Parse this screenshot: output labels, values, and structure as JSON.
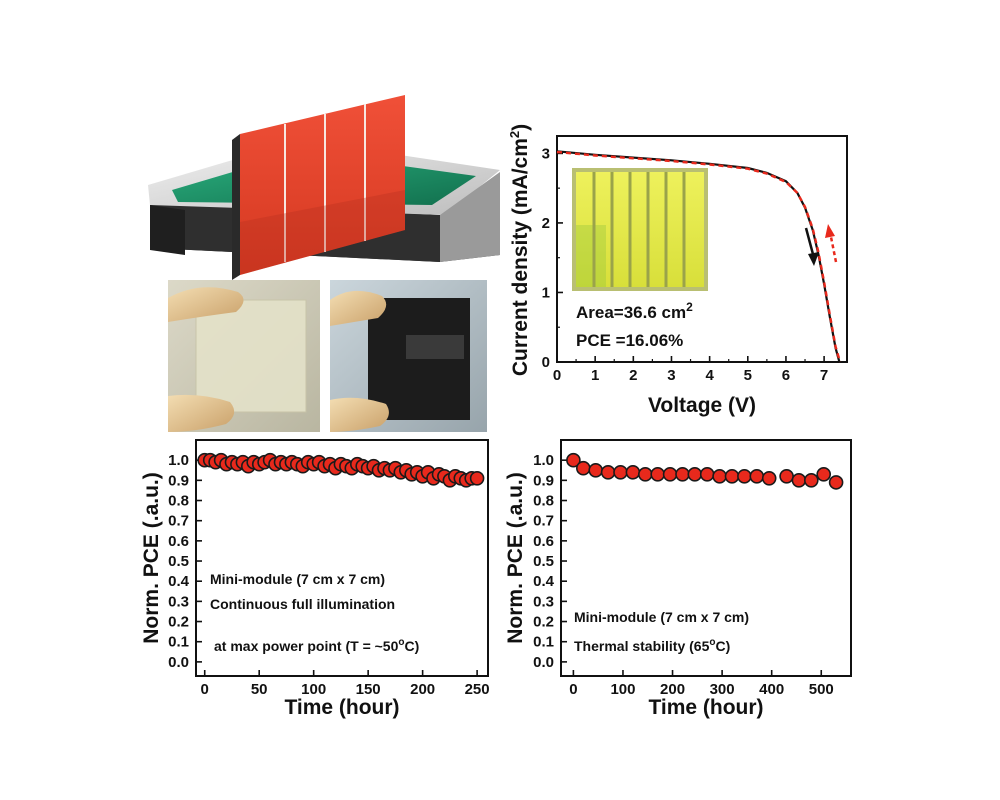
{
  "colors": {
    "accent_red": "#e8291c",
    "dark_red": "#8b0000",
    "module_red": "#e8432e",
    "tray_green": "#1f9a6f",
    "cell_yellow": "#e7ee4a"
  },
  "illustrations": {
    "dipping_module": "red-module-dipping-tray",
    "photo_left": "hand-holding-transparent-film",
    "photo_right": "hand-holding-dark-module"
  },
  "chart_data": [
    {
      "id": "jv",
      "type": "line",
      "xlabel": "Voltage (V)",
      "ylabel_main": "Current density (mA/cm",
      "ylabel_sup": "2",
      "ylabel_tail": ")",
      "xlim": [
        0,
        7.6
      ],
      "ylim": [
        0,
        3.25
      ],
      "xticks": [
        0,
        1,
        2,
        3,
        4,
        5,
        6,
        7
      ],
      "yticks": [
        0,
        1,
        2,
        3
      ],
      "series": [
        {
          "name": "forward",
          "x": [
            0,
            1,
            2,
            3,
            4,
            5,
            5.5,
            6,
            6.3,
            6.5,
            6.7,
            6.85,
            7.0,
            7.15,
            7.3,
            7.4
          ],
          "y": [
            3.03,
            2.98,
            2.94,
            2.9,
            2.85,
            2.79,
            2.72,
            2.6,
            2.43,
            2.22,
            1.9,
            1.55,
            1.12,
            0.65,
            0.2,
            0.0
          ]
        },
        {
          "name": "reverse",
          "x": [
            0,
            1,
            2,
            3,
            4,
            5,
            5.5,
            6,
            6.3,
            6.5,
            6.7,
            6.85,
            7.0,
            7.15,
            7.3,
            7.42
          ],
          "y": [
            3.02,
            2.97,
            2.93,
            2.89,
            2.84,
            2.78,
            2.71,
            2.59,
            2.43,
            2.23,
            1.92,
            1.58,
            1.15,
            0.68,
            0.22,
            0.0
          ]
        }
      ],
      "annotations": {
        "area_label": "Area=36.6 cm",
        "area_sup": "2",
        "pce_label": "PCE =16.06%"
      }
    },
    {
      "id": "stability-light",
      "type": "scatter",
      "xlabel": "Time (hour)",
      "ylabel": "Norm. PCE (.a.u.)",
      "xlim": [
        -8,
        260
      ],
      "ylim": [
        -0.07,
        1.1
      ],
      "xticks": [
        0,
        50,
        100,
        150,
        200,
        250
      ],
      "yticks": [
        0.0,
        0.1,
        0.2,
        0.3,
        0.4,
        0.5,
        0.6,
        0.7,
        0.8,
        0.9,
        1.0
      ],
      "x": [
        0,
        5,
        10,
        15,
        20,
        25,
        30,
        35,
        40,
        45,
        50,
        55,
        60,
        65,
        70,
        75,
        80,
        85,
        90,
        95,
        100,
        105,
        110,
        115,
        120,
        125,
        130,
        135,
        140,
        145,
        150,
        155,
        160,
        165,
        170,
        175,
        180,
        185,
        190,
        195,
        200,
        205,
        210,
        215,
        220,
        225,
        230,
        235,
        240,
        245,
        250
      ],
      "y": [
        1.0,
        1.0,
        0.99,
        1.0,
        0.98,
        0.99,
        0.98,
        0.99,
        0.97,
        0.99,
        0.98,
        0.99,
        1.0,
        0.98,
        0.99,
        0.98,
        0.99,
        0.98,
        0.97,
        0.99,
        0.98,
        0.99,
        0.97,
        0.98,
        0.96,
        0.98,
        0.97,
        0.96,
        0.98,
        0.97,
        0.96,
        0.97,
        0.95,
        0.96,
        0.95,
        0.96,
        0.94,
        0.95,
        0.93,
        0.94,
        0.92,
        0.94,
        0.91,
        0.93,
        0.92,
        0.9,
        0.92,
        0.91,
        0.9,
        0.91,
        0.91
      ],
      "annotations": [
        "Mini-module (7 cm x 7 cm)",
        "Continuous full illumination",
        "at max power point (T = ~50",
        "o",
        "C)"
      ]
    },
    {
      "id": "stability-thermal",
      "type": "scatter",
      "xlabel": "Time (hour)",
      "ylabel": "Norm. PCE (.a.u.)",
      "xlim": [
        -25,
        560
      ],
      "ylim": [
        -0.07,
        1.1
      ],
      "xticks": [
        0,
        100,
        200,
        300,
        400,
        500
      ],
      "yticks": [
        0.0,
        0.1,
        0.2,
        0.3,
        0.4,
        0.5,
        0.6,
        0.7,
        0.8,
        0.9,
        1.0
      ],
      "x": [
        0,
        20,
        45,
        70,
        95,
        120,
        145,
        170,
        195,
        220,
        245,
        270,
        295,
        320,
        345,
        370,
        395,
        430,
        455,
        480,
        505,
        530
      ],
      "y": [
        1.0,
        0.96,
        0.95,
        0.94,
        0.94,
        0.94,
        0.93,
        0.93,
        0.93,
        0.93,
        0.93,
        0.93,
        0.92,
        0.92,
        0.92,
        0.92,
        0.91,
        0.92,
        0.9,
        0.9,
        0.93,
        0.89
      ],
      "annotations": [
        "Mini-module (7 cm x 7 cm)",
        "Thermal stability (65",
        "o",
        "C)"
      ]
    }
  ]
}
